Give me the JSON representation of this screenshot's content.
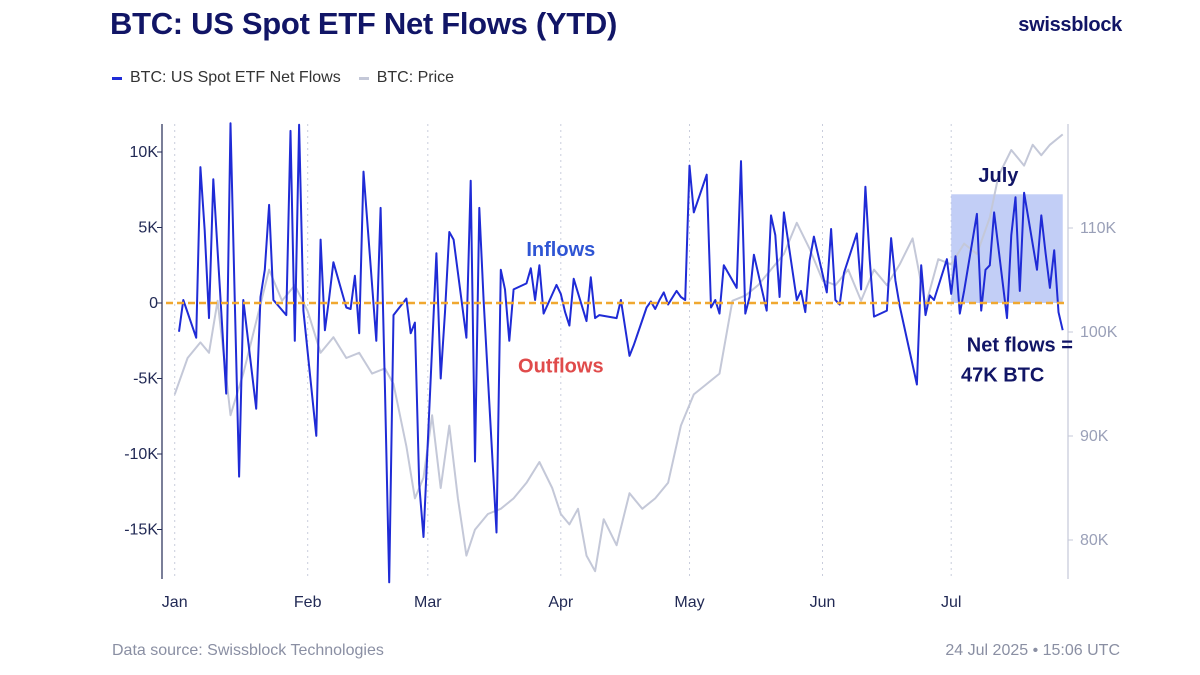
{
  "header": {
    "title": "BTC: US Spot ETF Net Flows (YTD)",
    "brand": "swissblock"
  },
  "footer": {
    "source": "Data source: Swissblock Technologies",
    "timestamp": "24 Jul 2025 • 15:06 UTC"
  },
  "colors": {
    "title": "#111566",
    "flows": "#1f2bd6",
    "price": "#c4c8d8",
    "zero_line": "#f0a830",
    "highlight": "#b7c6f5",
    "inflows_label": "#2f55d4",
    "outflows_label": "#e04b4b",
    "annotation": "#111566"
  },
  "chart_data": {
    "type": "line",
    "title": "BTC: US Spot ETF Net Flows (YTD)",
    "legend": {
      "placement": "top-left",
      "entries": [
        "BTC: US Spot ETF Net Flows",
        "BTC: Price"
      ]
    },
    "x_axis": {
      "type": "date",
      "ticks": [
        "Jan",
        "Feb",
        "Mar",
        "Apr",
        "May",
        "Jun",
        "Jul"
      ],
      "range": [
        "2025-01-02",
        "2025-07-24"
      ]
    },
    "y_axis_left": {
      "ticks": [
        "10K",
        "5K",
        "0",
        "-5K",
        "-10K",
        "-15K"
      ],
      "tick_values": [
        10000,
        5000,
        0,
        -5000,
        -10000,
        -15000
      ],
      "range": [
        -18500,
        11800
      ]
    },
    "y_axis_right": {
      "ticks": [
        "110K",
        "100K",
        "90K",
        "80K"
      ],
      "tick_values": [
        110000,
        100000,
        90000,
        80000
      ],
      "range": [
        75500,
        118500
      ]
    },
    "grid": {
      "vertical_month_lines": true,
      "style": "dotted"
    },
    "reference_line": {
      "value": 0,
      "style": "dashed"
    },
    "series": [
      {
        "name": "BTC: US Spot ETF Net Flows",
        "axis": "left",
        "points": [
          [
            "2025-01-02",
            -1900
          ],
          [
            "2025-01-03",
            200
          ],
          [
            "2025-01-06",
            -2300
          ],
          [
            "2025-01-07",
            9000
          ],
          [
            "2025-01-08",
            4800
          ],
          [
            "2025-01-09",
            -1000
          ],
          [
            "2025-01-10",
            8200
          ],
          [
            "2025-01-13",
            -6000
          ],
          [
            "2025-01-14",
            11900
          ],
          [
            "2025-01-15",
            100
          ],
          [
            "2025-01-16",
            -11500
          ],
          [
            "2025-01-17",
            200
          ],
          [
            "2025-01-20",
            -7000
          ],
          [
            "2025-01-21",
            400
          ],
          [
            "2025-01-22",
            2200
          ],
          [
            "2025-01-23",
            6500
          ],
          [
            "2025-01-24",
            200
          ],
          [
            "2025-01-27",
            -800
          ],
          [
            "2025-01-28",
            11400
          ],
          [
            "2025-01-29",
            -2500
          ],
          [
            "2025-01-30",
            11800
          ],
          [
            "2025-01-31",
            -500
          ],
          [
            "2025-02-03",
            -8800
          ],
          [
            "2025-02-04",
            4200
          ],
          [
            "2025-02-05",
            -1800
          ],
          [
            "2025-02-06",
            300
          ],
          [
            "2025-02-07",
            2700
          ],
          [
            "2025-02-10",
            -300
          ],
          [
            "2025-02-11",
            -400
          ],
          [
            "2025-02-12",
            1800
          ],
          [
            "2025-02-13",
            -2000
          ],
          [
            "2025-02-14",
            8700
          ],
          [
            "2025-02-17",
            -2500
          ],
          [
            "2025-02-18",
            6300
          ],
          [
            "2025-02-19",
            -5500
          ],
          [
            "2025-02-20",
            -18500
          ],
          [
            "2025-02-21",
            -800
          ],
          [
            "2025-02-24",
            300
          ],
          [
            "2025-02-25",
            -2000
          ],
          [
            "2025-02-26",
            -1300
          ],
          [
            "2025-02-27",
            -12000
          ],
          [
            "2025-02-28",
            -15500
          ],
          [
            "2025-03-03",
            3300
          ],
          [
            "2025-03-04",
            -5000
          ],
          [
            "2025-03-05",
            -600
          ],
          [
            "2025-03-06",
            4700
          ],
          [
            "2025-03-07",
            4200
          ],
          [
            "2025-03-10",
            -2300
          ],
          [
            "2025-03-11",
            8100
          ],
          [
            "2025-03-12",
            -10500
          ],
          [
            "2025-03-13",
            6300
          ],
          [
            "2025-03-14",
            200
          ],
          [
            "2025-03-17",
            -15200
          ],
          [
            "2025-03-18",
            2200
          ],
          [
            "2025-03-19",
            900
          ],
          [
            "2025-03-20",
            -2500
          ],
          [
            "2025-03-21",
            900
          ],
          [
            "2025-03-24",
            1300
          ],
          [
            "2025-03-25",
            2300
          ],
          [
            "2025-03-26",
            200
          ],
          [
            "2025-03-27",
            2500
          ],
          [
            "2025-03-28",
            -700
          ],
          [
            "2025-03-31",
            1200
          ],
          [
            "2025-04-01",
            600
          ],
          [
            "2025-04-02",
            -600
          ],
          [
            "2025-04-03",
            -1500
          ],
          [
            "2025-04-04",
            1600
          ],
          [
            "2025-04-07",
            -1200
          ],
          [
            "2025-04-08",
            1700
          ],
          [
            "2025-04-09",
            -1000
          ],
          [
            "2025-04-10",
            -800
          ],
          [
            "2025-04-14",
            -1000
          ],
          [
            "2025-04-15",
            200
          ],
          [
            "2025-04-17",
            -3500
          ],
          [
            "2025-04-18",
            -2800
          ],
          [
            "2025-04-21",
            -300
          ],
          [
            "2025-04-22",
            100
          ],
          [
            "2025-04-23",
            -400
          ],
          [
            "2025-04-24",
            200
          ],
          [
            "2025-04-25",
            700
          ],
          [
            "2025-04-26",
            -100
          ],
          [
            "2025-04-28",
            800
          ],
          [
            "2025-04-29",
            400
          ],
          [
            "2025-04-30",
            200
          ],
          [
            "2025-05-01",
            9100
          ],
          [
            "2025-05-02",
            6000
          ],
          [
            "2025-05-05",
            8500
          ],
          [
            "2025-05-06",
            -300
          ],
          [
            "2025-05-07",
            200
          ],
          [
            "2025-05-08",
            -700
          ],
          [
            "2025-05-09",
            2500
          ],
          [
            "2025-05-12",
            1000
          ],
          [
            "2025-05-13",
            9400
          ],
          [
            "2025-05-14",
            -700
          ],
          [
            "2025-05-15",
            400
          ],
          [
            "2025-05-16",
            3200
          ],
          [
            "2025-05-19",
            -500
          ],
          [
            "2025-05-20",
            5800
          ],
          [
            "2025-05-21",
            4500
          ],
          [
            "2025-05-22",
            400
          ],
          [
            "2025-05-23",
            6000
          ],
          [
            "2025-05-26",
            200
          ],
          [
            "2025-05-27",
            800
          ],
          [
            "2025-05-28",
            -600
          ],
          [
            "2025-05-29",
            2800
          ],
          [
            "2025-05-30",
            4400
          ],
          [
            "2025-06-02",
            700
          ],
          [
            "2025-06-03",
            4900
          ],
          [
            "2025-06-04",
            200
          ],
          [
            "2025-06-05",
            -100
          ],
          [
            "2025-06-06",
            2000
          ],
          [
            "2025-06-09",
            4600
          ],
          [
            "2025-06-10",
            900
          ],
          [
            "2025-06-11",
            7700
          ],
          [
            "2025-06-12",
            2900
          ],
          [
            "2025-06-13",
            -900
          ],
          [
            "2025-06-16",
            -500
          ],
          [
            "2025-06-17",
            4300
          ],
          [
            "2025-06-18",
            1500
          ],
          [
            "2025-06-19",
            -200
          ],
          [
            "2025-06-20",
            -1500
          ],
          [
            "2025-06-23",
            -5400
          ],
          [
            "2025-06-24",
            2500
          ],
          [
            "2025-06-25",
            -800
          ],
          [
            "2025-06-26",
            500
          ],
          [
            "2025-06-27",
            200
          ],
          [
            "2025-06-30",
            2900
          ],
          [
            "2025-07-01",
            600
          ],
          [
            "2025-07-02",
            3100
          ],
          [
            "2025-07-03",
            -700
          ],
          [
            "2025-07-04",
            800
          ],
          [
            "2025-07-07",
            5900
          ],
          [
            "2025-07-08",
            -500
          ],
          [
            "2025-07-09",
            2200
          ],
          [
            "2025-07-10",
            2500
          ],
          [
            "2025-07-11",
            6000
          ],
          [
            "2025-07-14",
            -1000
          ],
          [
            "2025-07-15",
            4500
          ],
          [
            "2025-07-16",
            7000
          ],
          [
            "2025-07-17",
            800
          ],
          [
            "2025-07-18",
            7300
          ],
          [
            "2025-07-21",
            2200
          ],
          [
            "2025-07-22",
            5800
          ],
          [
            "2025-07-23",
            3300
          ],
          [
            "2025-07-24",
            1000
          ],
          [
            "2025-07-25",
            3500
          ],
          [
            "2025-07-26",
            -600
          ],
          [
            "2025-07-27",
            -1800
          ]
        ]
      },
      {
        "name": "BTC: Price",
        "axis": "right",
        "points": [
          [
            "2025-01-01",
            94000
          ],
          [
            "2025-01-04",
            97500
          ],
          [
            "2025-01-07",
            99000
          ],
          [
            "2025-01-09",
            98000
          ],
          [
            "2025-01-11",
            103000
          ],
          [
            "2025-01-14",
            92000
          ],
          [
            "2025-01-17",
            96000
          ],
          [
            "2025-01-20",
            101000
          ],
          [
            "2025-01-23",
            106000
          ],
          [
            "2025-01-26",
            103000
          ],
          [
            "2025-01-29",
            104500
          ],
          [
            "2025-02-01",
            102000
          ],
          [
            "2025-02-04",
            98000
          ],
          [
            "2025-02-07",
            99500
          ],
          [
            "2025-02-10",
            97500
          ],
          [
            "2025-02-13",
            98000
          ],
          [
            "2025-02-16",
            96000
          ],
          [
            "2025-02-19",
            96500
          ],
          [
            "2025-02-21",
            95000
          ],
          [
            "2025-02-24",
            89000
          ],
          [
            "2025-02-26",
            84000
          ],
          [
            "2025-02-28",
            86000
          ],
          [
            "2025-03-02",
            92000
          ],
          [
            "2025-03-04",
            85000
          ],
          [
            "2025-03-06",
            91000
          ],
          [
            "2025-03-08",
            84000
          ],
          [
            "2025-03-10",
            78500
          ],
          [
            "2025-03-12",
            81000
          ],
          [
            "2025-03-15",
            82500
          ],
          [
            "2025-03-18",
            83000
          ],
          [
            "2025-03-21",
            84000
          ],
          [
            "2025-03-24",
            85500
          ],
          [
            "2025-03-27",
            87500
          ],
          [
            "2025-03-30",
            85000
          ],
          [
            "2025-04-01",
            82500
          ],
          [
            "2025-04-03",
            81500
          ],
          [
            "2025-04-05",
            83000
          ],
          [
            "2025-04-07",
            78500
          ],
          [
            "2025-04-09",
            77000
          ],
          [
            "2025-04-11",
            82000
          ],
          [
            "2025-04-14",
            79500
          ],
          [
            "2025-04-17",
            84500
          ],
          [
            "2025-04-20",
            83000
          ],
          [
            "2025-04-23",
            84000
          ],
          [
            "2025-04-26",
            85500
          ],
          [
            "2025-04-29",
            91000
          ],
          [
            "2025-05-02",
            94000
          ],
          [
            "2025-05-05",
            95000
          ],
          [
            "2025-05-08",
            96000
          ],
          [
            "2025-05-11",
            103000
          ],
          [
            "2025-05-14",
            103500
          ],
          [
            "2025-05-17",
            104500
          ],
          [
            "2025-05-20",
            106000
          ],
          [
            "2025-05-23",
            107500
          ],
          [
            "2025-05-26",
            110500
          ],
          [
            "2025-05-29",
            108000
          ],
          [
            "2025-06-01",
            105000
          ],
          [
            "2025-06-04",
            104500
          ],
          [
            "2025-06-07",
            106000
          ],
          [
            "2025-06-10",
            103000
          ],
          [
            "2025-06-13",
            106000
          ],
          [
            "2025-06-16",
            104500
          ],
          [
            "2025-06-19",
            106500
          ],
          [
            "2025-06-22",
            109000
          ],
          [
            "2025-06-25",
            102500
          ],
          [
            "2025-06-28",
            107000
          ],
          [
            "2025-07-01",
            106500
          ],
          [
            "2025-07-04",
            108500
          ],
          [
            "2025-07-07",
            107500
          ],
          [
            "2025-07-10",
            111000
          ],
          [
            "2025-07-12",
            115000
          ],
          [
            "2025-07-15",
            117500
          ],
          [
            "2025-07-18",
            116000
          ],
          [
            "2025-07-20",
            118000
          ],
          [
            "2025-07-22",
            117000
          ],
          [
            "2025-07-24",
            118000
          ],
          [
            "2025-07-27",
            119000
          ]
        ]
      }
    ],
    "annotations": [
      {
        "id": "inflows",
        "text": "Inflows",
        "date": "2025-04-01",
        "value": 3100
      },
      {
        "id": "outflows",
        "text": "Outflows",
        "date": "2025-04-01",
        "value": -4600
      },
      {
        "id": "july",
        "text": "July",
        "date": "2025-07-12",
        "value": 8000
      },
      {
        "id": "net1",
        "text": "Net flows =",
        "date": "2025-07-17",
        "value": -3200
      },
      {
        "id": "net2",
        "text": "47K BTC",
        "date": "2025-07-13",
        "value": -5200
      }
    ],
    "highlight_region": {
      "label": "July",
      "x_start": "2025-07-01",
      "x_end": "2025-07-27",
      "y_start": 0,
      "y_end": 7200
    }
  }
}
